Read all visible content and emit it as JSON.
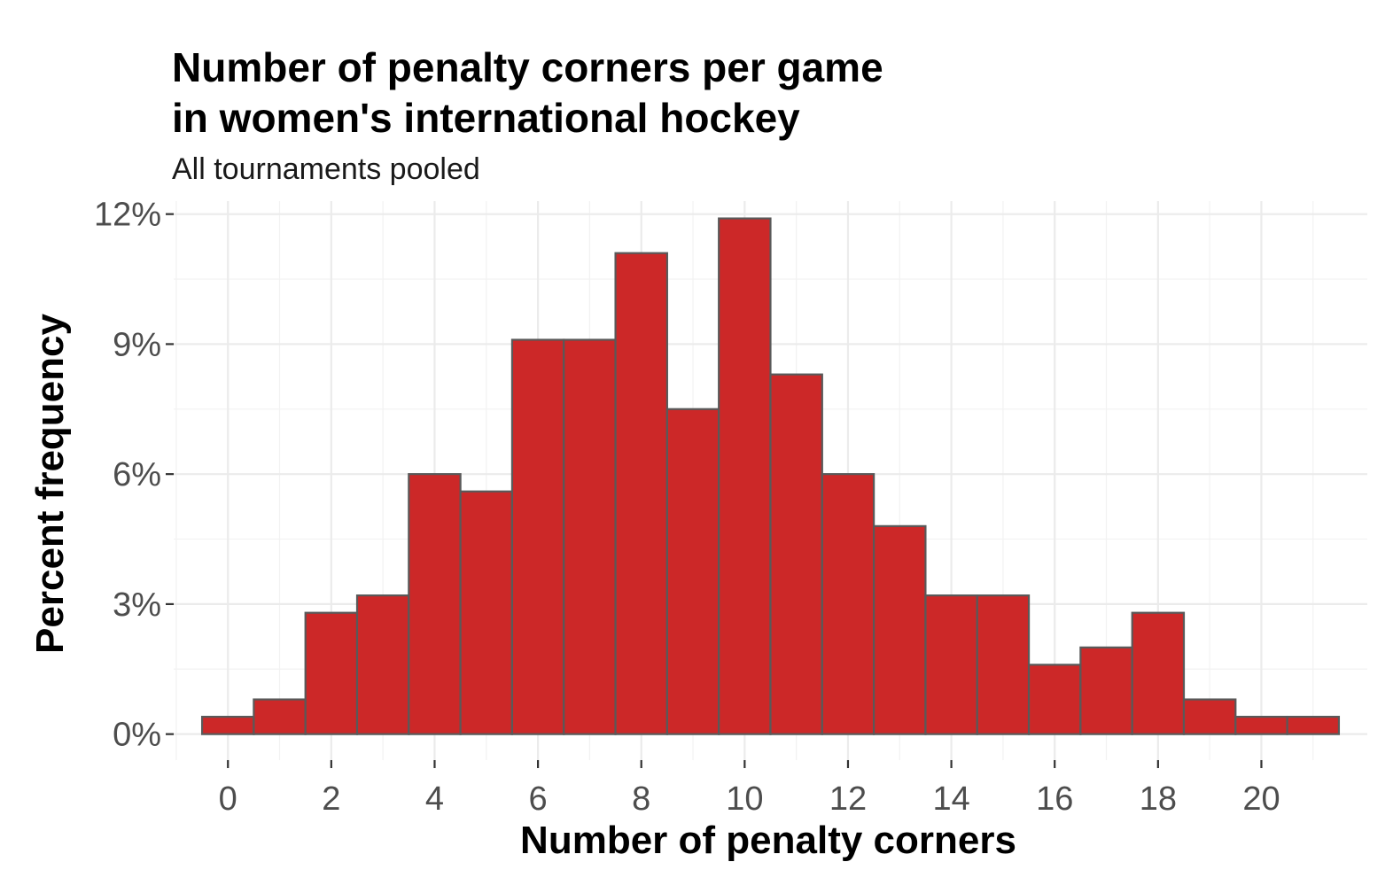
{
  "chart_data": {
    "type": "bar",
    "title_line1": "Number of penalty corners per game",
    "title_line2": "in women's international hockey",
    "subtitle": "All tournaments pooled",
    "xlabel": "Number of penalty corners",
    "ylabel": "Percent frequency",
    "x": [
      0,
      1,
      2,
      3,
      4,
      5,
      6,
      7,
      8,
      9,
      10,
      11,
      12,
      13,
      14,
      15,
      16,
      17,
      18,
      19,
      20,
      21
    ],
    "values": [
      0.4,
      0.8,
      2.8,
      3.2,
      6.0,
      5.6,
      9.1,
      9.1,
      11.1,
      7.5,
      11.9,
      8.3,
      6.0,
      4.8,
      3.2,
      3.2,
      1.6,
      2.0,
      2.8,
      0.8,
      0.4,
      0.4
    ],
    "x_ticks": [
      0,
      2,
      4,
      6,
      8,
      10,
      12,
      14,
      16,
      18,
      20
    ],
    "x_tick_labels": [
      "0",
      "2",
      "4",
      "6",
      "8",
      "10",
      "12",
      "14",
      "16",
      "18",
      "20"
    ],
    "y_ticks": [
      0,
      3,
      6,
      9,
      12
    ],
    "y_tick_labels": [
      "0%",
      "3%",
      "6%",
      "9%",
      "12%"
    ],
    "xlim": [
      -1.05,
      22.05
    ],
    "ylim": [
      -0.6,
      12.3
    ],
    "grid": true,
    "bar_color": "#CC2828",
    "bar_border_color": "#595959"
  }
}
